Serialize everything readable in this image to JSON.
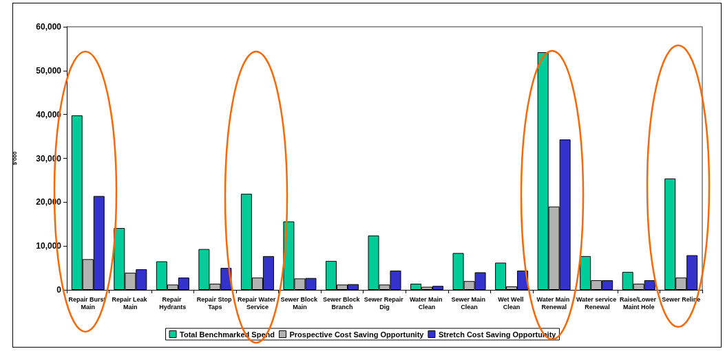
{
  "chart_data": {
    "type": "bar",
    "ylabel": "$'000",
    "categories": [
      "Repair Burst Main",
      "Repair Leak Main",
      "Repair Hydrants",
      "Repair Stop Taps",
      "Repair Water Service",
      "Sewer Block Main",
      "Sewer Block Branch",
      "Sewer Repair Dig",
      "Water Main Clean",
      "Sewer Main Clean",
      "Wet Well Clean",
      "Water Main Renewal",
      "Water service Renewal",
      "Raise/Lower Maint Hole",
      "Sewer Reline"
    ],
    "series": [
      {
        "name": "Total Benchmarked Spend",
        "color": "#00cc99",
        "values": [
          39800,
          14100,
          6500,
          9300,
          21900,
          15600,
          6600,
          12400,
          1400,
          8400,
          6200,
          54200,
          7700,
          4100,
          25400
        ]
      },
      {
        "name": "Prospective Cost Saving Opportunity",
        "color": "#b2b2b2",
        "values": [
          7000,
          3900,
          1200,
          1400,
          2800,
          2600,
          1200,
          1200,
          700,
          2000,
          800,
          19000,
          2200,
          1400,
          2800
        ]
      },
      {
        "name": "Stretch Cost Saving Opportunity",
        "color": "#3333cc",
        "values": [
          21400,
          4700,
          2800,
          5000,
          7700,
          2700,
          1300,
          4400,
          900,
          4000,
          4400,
          34300,
          2200,
          2200,
          7900
        ]
      }
    ],
    "ylim": [
      0,
      60000
    ],
    "yticks": [
      0,
      {
        "value": 10000,
        "label": "10,000"
      },
      {
        "value": 20000,
        "label": "20,000"
      },
      {
        "value": 30000,
        "label": "30,000"
      },
      {
        "value": 40000,
        "label": "40,000"
      },
      {
        "value": 50000,
        "label": "50,000"
      },
      {
        "value": 60000,
        "label": "60,000"
      }
    ],
    "grid": false,
    "legend": "bottom"
  }
}
